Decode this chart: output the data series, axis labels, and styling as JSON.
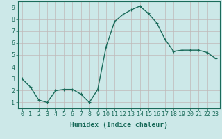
{
  "x": [
    0,
    1,
    2,
    3,
    4,
    5,
    6,
    7,
    8,
    9,
    10,
    11,
    12,
    13,
    14,
    15,
    16,
    17,
    18,
    19,
    20,
    21,
    22,
    23
  ],
  "y": [
    3.0,
    2.3,
    1.2,
    1.0,
    2.0,
    2.1,
    2.1,
    1.7,
    1.0,
    2.1,
    5.7,
    7.8,
    8.4,
    8.8,
    9.1,
    8.5,
    7.7,
    6.3,
    5.3,
    5.4,
    5.4,
    5.4,
    5.2,
    4.7
  ],
  "line_color": "#1a6b5a",
  "marker": "+",
  "marker_size": 3,
  "background_color": "#cce8e8",
  "grid_color": "#c0b8b8",
  "xlabel": "Humidex (Indice chaleur)",
  "xlim": [
    -0.5,
    23.5
  ],
  "ylim": [
    0.5,
    9.5
  ],
  "xticks": [
    0,
    1,
    2,
    3,
    4,
    5,
    6,
    7,
    8,
    9,
    10,
    11,
    12,
    13,
    14,
    15,
    16,
    17,
    18,
    19,
    20,
    21,
    22,
    23
  ],
  "yticks": [
    1,
    2,
    3,
    4,
    5,
    6,
    7,
    8,
    9
  ],
  "tick_color": "#1a6b5a",
  "label_fontsize": 7,
  "tick_fontsize": 6,
  "linewidth": 1.0,
  "markeredgewidth": 0.8
}
